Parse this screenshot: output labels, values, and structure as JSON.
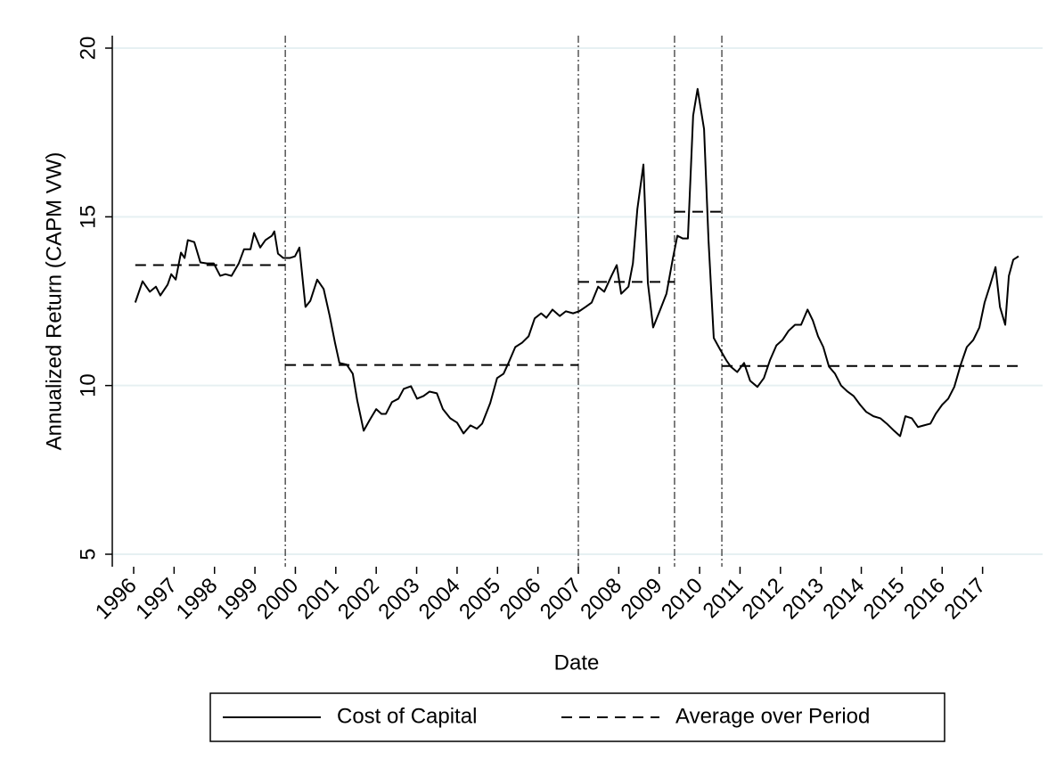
{
  "chart_data": {
    "type": "line",
    "ylabel": "Annualized Return (CAPM VW)",
    "xlabel": "Date",
    "xlim": [
      1996,
      2018
    ],
    "ylim": [
      5,
      20
    ],
    "xticks": [
      1996,
      1997,
      1998,
      1999,
      2000,
      2001,
      2002,
      2003,
      2004,
      2005,
      2006,
      2007,
      2008,
      2009,
      2010,
      2011,
      2012,
      2013,
      2014,
      2015,
      2016,
      2017
    ],
    "yticks": [
      5,
      10,
      15,
      20
    ],
    "grid": true,
    "grid_color": "#e6f0f2",
    "vlines": [
      1999.75,
      2007.0,
      2009.38,
      2010.55
    ],
    "legend": "bottom",
    "series": [
      {
        "name": "Cost of Capital",
        "color": "#000000",
        "dash": "solid",
        "x": [
          1996.04,
          1996.22,
          1996.4,
          1996.55,
          1996.66,
          1996.84,
          1996.93,
          1997.04,
          1997.17,
          1997.26,
          1997.34,
          1997.5,
          1997.65,
          1997.81,
          1997.98,
          1998.14,
          1998.27,
          1998.42,
          1998.6,
          1998.73,
          1998.89,
          1998.98,
          1999.13,
          1999.26,
          1999.42,
          1999.48,
          1999.57,
          1999.7,
          1999.86,
          1999.99,
          2000.1,
          2000.25,
          2000.37,
          2000.54,
          2000.7,
          2000.85,
          2000.98,
          2001.09,
          2001.27,
          2001.42,
          2001.53,
          2001.69,
          2001.84,
          2002.0,
          2002.13,
          2002.24,
          2002.39,
          2002.55,
          2002.68,
          2002.86,
          2003.01,
          2003.17,
          2003.32,
          2003.5,
          2003.65,
          2003.83,
          2004.0,
          2004.16,
          2004.33,
          2004.49,
          2004.62,
          2004.82,
          2004.99,
          2005.15,
          2005.28,
          2005.44,
          2005.61,
          2005.77,
          2005.92,
          2006.08,
          2006.21,
          2006.36,
          2006.54,
          2006.69,
          2006.87,
          2007.02,
          2007.18,
          2007.33,
          2007.49,
          2007.64,
          2007.82,
          2007.95,
          2008.06,
          2008.24,
          2008.35,
          2008.46,
          2008.61,
          2008.72,
          2008.85,
          2009.01,
          2009.18,
          2009.34,
          2009.45,
          2009.58,
          2009.71,
          2009.84,
          2009.95,
          2010.11,
          2010.22,
          2010.35,
          2010.51,
          2010.66,
          2010.77,
          2010.93,
          2011.1,
          2011.25,
          2011.43,
          2011.59,
          2011.74,
          2011.9,
          2012.05,
          2012.2,
          2012.36,
          2012.51,
          2012.67,
          2012.8,
          2012.93,
          2013.06,
          2013.2,
          2013.35,
          2013.5,
          2013.66,
          2013.81,
          2013.97,
          2014.12,
          2014.3,
          2014.47,
          2014.63,
          2014.81,
          2014.96,
          2015.09,
          2015.25,
          2015.4,
          2015.55,
          2015.71,
          2015.84,
          2016.0,
          2016.15,
          2016.3,
          2016.46,
          2016.61,
          2016.77,
          2016.92,
          2017.05,
          2017.19,
          2017.32,
          2017.43,
          2017.56,
          2017.65,
          2017.76,
          2017.89
        ],
        "values": [
          12.46,
          13.09,
          12.78,
          12.93,
          12.67,
          12.99,
          13.3,
          13.14,
          13.94,
          13.78,
          14.31,
          14.25,
          13.65,
          13.62,
          13.62,
          13.25,
          13.3,
          13.25,
          13.62,
          14.04,
          14.04,
          14.52,
          14.09,
          14.31,
          14.44,
          14.57,
          13.91,
          13.78,
          13.78,
          13.83,
          14.09,
          12.33,
          12.51,
          13.14,
          12.86,
          12.06,
          11.27,
          10.67,
          10.62,
          10.35,
          9.56,
          8.66,
          8.98,
          9.3,
          9.16,
          9.16,
          9.51,
          9.61,
          9.9,
          9.98,
          9.61,
          9.69,
          9.82,
          9.77,
          9.3,
          9.03,
          8.9,
          8.58,
          8.82,
          8.72,
          8.87,
          9.48,
          10.22,
          10.35,
          10.69,
          11.14,
          11.27,
          11.46,
          11.99,
          12.14,
          12.01,
          12.25,
          12.06,
          12.2,
          12.14,
          12.2,
          12.33,
          12.46,
          12.93,
          12.78,
          13.25,
          13.57,
          12.72,
          12.93,
          13.62,
          15.23,
          16.55,
          13.04,
          11.72,
          12.2,
          12.72,
          13.78,
          14.44,
          14.36,
          14.36,
          18.0,
          18.79,
          17.6,
          14.31,
          11.41,
          11.06,
          10.75,
          10.56,
          10.4,
          10.67,
          10.14,
          9.96,
          10.22,
          10.75,
          11.19,
          11.35,
          11.62,
          11.8,
          11.8,
          12.25,
          11.93,
          11.46,
          11.14,
          10.56,
          10.35,
          10.0,
          9.82,
          9.69,
          9.43,
          9.22,
          9.09,
          9.03,
          8.87,
          8.66,
          8.5,
          9.09,
          9.03,
          8.77,
          8.82,
          8.87,
          9.16,
          9.43,
          9.61,
          9.96,
          10.62,
          11.14,
          11.35,
          11.72,
          12.46,
          12.99,
          13.51,
          12.33,
          11.8,
          13.25,
          13.73,
          13.83
        ]
      },
      {
        "name": "Average over Period",
        "color": "#000000",
        "dash": "dashed",
        "x": [
          1996.04,
          1999.75,
          1999.75,
          1999.75,
          2007.0,
          2007.0,
          2007.0,
          2009.38,
          2009.38,
          2009.38,
          2010.55,
          2010.55,
          2010.55,
          2017.9
        ],
        "values": [
          13.57,
          13.57,
          null,
          10.61,
          10.61,
          null,
          13.07,
          13.07,
          null,
          15.15,
          15.15,
          null,
          10.58,
          10.58
        ]
      }
    ]
  }
}
